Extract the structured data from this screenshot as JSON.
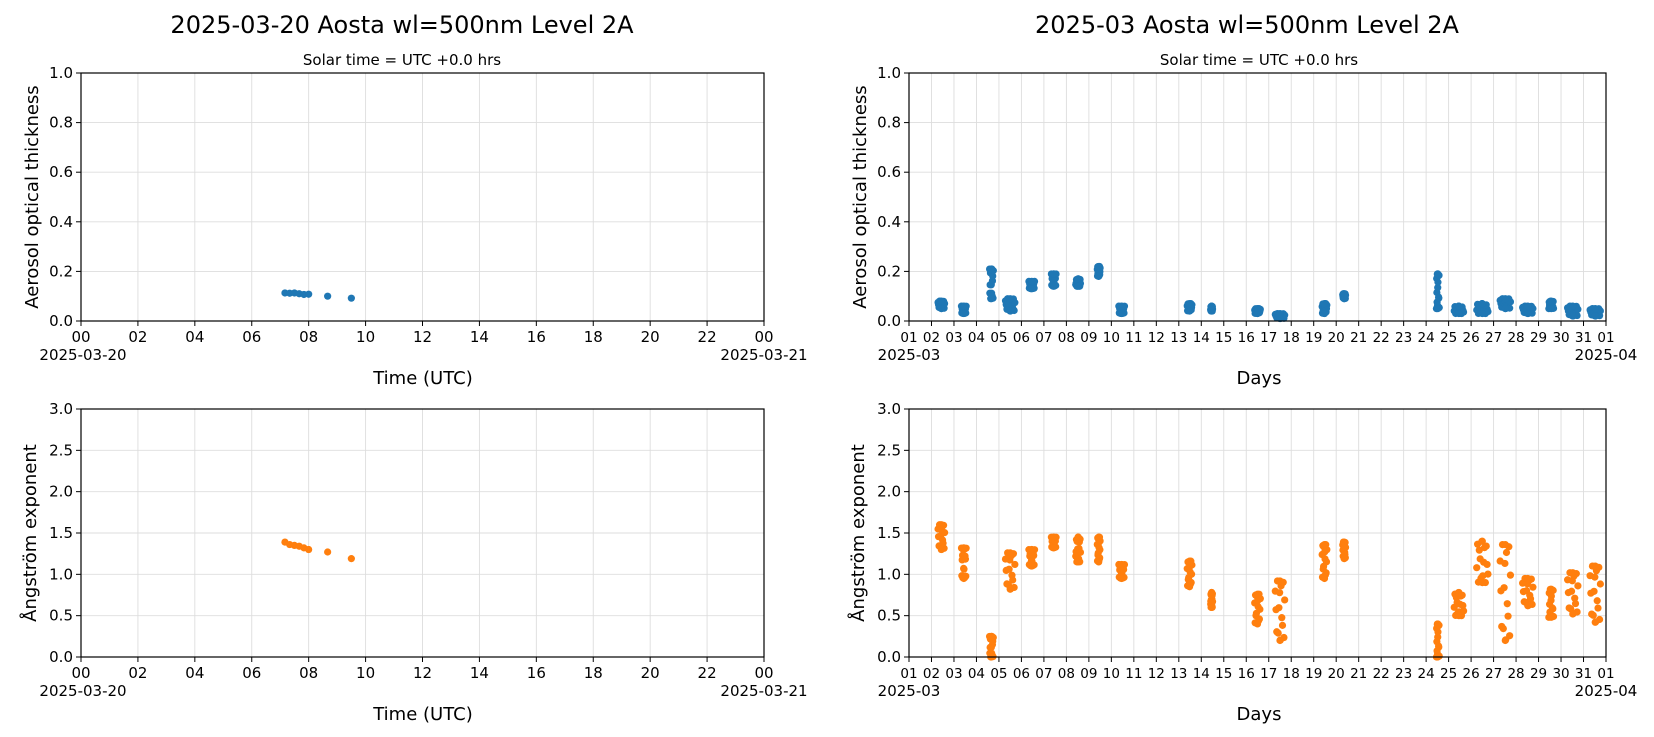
{
  "colors": {
    "aod": "#1f77b4",
    "angstrom": "#ff7f0e",
    "grid": "#dddddd"
  },
  "chart_data": [
    {
      "id": "daily-aod",
      "type": "scatter",
      "suptitle": "2025-03-20  Aosta  wl=500nm  Level 2A",
      "title": "Solar time = UTC +0.0 hrs",
      "xlabel": "Time (UTC)",
      "ylabel": "Aerosol optical thickness",
      "xlim": [
        "2025-03-20 00:00",
        "2025-03-21 00:00"
      ],
      "ylim": [
        0.0,
        1.0
      ],
      "xticks": [
        "00",
        "02",
        "04",
        "06",
        "08",
        "10",
        "12",
        "14",
        "16",
        "18",
        "20",
        "22",
        "00"
      ],
      "xtick_date_left": "2025-03-20",
      "xtick_date_right": "2025-03-21",
      "yticks": [
        "0.0",
        "0.2",
        "0.4",
        "0.6",
        "0.8",
        "1.0"
      ],
      "grid": true,
      "points": [
        {
          "x": "2025-03-20 07:10",
          "y": 0.113
        },
        {
          "x": "2025-03-20 07:20",
          "y": 0.112
        },
        {
          "x": "2025-03-20 07:30",
          "y": 0.113
        },
        {
          "x": "2025-03-20 07:40",
          "y": 0.11
        },
        {
          "x": "2025-03-20 07:50",
          "y": 0.107
        },
        {
          "x": "2025-03-20 08:00",
          "y": 0.108
        },
        {
          "x": "2025-03-20 08:40",
          "y": 0.1
        },
        {
          "x": "2025-03-20 09:30",
          "y": 0.092
        }
      ]
    },
    {
      "id": "monthly-aod",
      "type": "scatter",
      "suptitle": "2025-03  Aosta  wl=500nm  Level 2A",
      "title": "Solar time = UTC +0.0 hrs",
      "xlabel": "Days",
      "ylabel": "Aerosol optical thickness",
      "xlim": [
        "2025-03-01",
        "2025-04-01"
      ],
      "ylim": [
        0.0,
        1.0
      ],
      "xticks": [
        "01",
        "02",
        "03",
        "04",
        "05",
        "06",
        "07",
        "08",
        "09",
        "10",
        "11",
        "12",
        "13",
        "14",
        "15",
        "16",
        "17",
        "18",
        "19",
        "20",
        "21",
        "22",
        "23",
        "24",
        "25",
        "26",
        "27",
        "28",
        "29",
        "30",
        "31",
        "01"
      ],
      "xtick_date_left": "2025-03",
      "xtick_date_right": "2025-04",
      "yticks": [
        "0.0",
        "0.2",
        "0.4",
        "0.6",
        "0.8",
        "1.0"
      ],
      "grid": true,
      "clusters": [
        {
          "day": "2025-03-02",
          "start_h": 7,
          "end_h": 14,
          "y_min": 0.05,
          "y_max": 0.08
        },
        {
          "day": "2025-03-03",
          "start_h": 8,
          "end_h": 13,
          "y_min": 0.03,
          "y_max": 0.06
        },
        {
          "day": "2025-03-04",
          "start_h": 14,
          "end_h": 18,
          "y_min": 0.09,
          "y_max": 0.21
        },
        {
          "day": "2025-03-05",
          "start_h": 7,
          "end_h": 17,
          "y_min": 0.04,
          "y_max": 0.09
        },
        {
          "day": "2025-03-06",
          "start_h": 8,
          "end_h": 14,
          "y_min": 0.13,
          "y_max": 0.16
        },
        {
          "day": "2025-03-07",
          "start_h": 8,
          "end_h": 13,
          "y_min": 0.14,
          "y_max": 0.19
        },
        {
          "day": "2025-03-08",
          "start_h": 10,
          "end_h": 15,
          "y_min": 0.14,
          "y_max": 0.17
        },
        {
          "day": "2025-03-09",
          "start_h": 9,
          "end_h": 12,
          "y_min": 0.18,
          "y_max": 0.22
        },
        {
          "day": "2025-03-10",
          "start_h": 8,
          "end_h": 14,
          "y_min": 0.03,
          "y_max": 0.06
        },
        {
          "day": "2025-03-13",
          "start_h": 9,
          "end_h": 14,
          "y_min": 0.04,
          "y_max": 0.07
        },
        {
          "day": "2025-03-14",
          "start_h": 10,
          "end_h": 12,
          "y_min": 0.04,
          "y_max": 0.06
        },
        {
          "day": "2025-03-16",
          "start_h": 9,
          "end_h": 15,
          "y_min": 0.03,
          "y_max": 0.05
        },
        {
          "day": "2025-03-17",
          "start_h": 7,
          "end_h": 17,
          "y_min": 0.01,
          "y_max": 0.03
        },
        {
          "day": "2025-03-19",
          "start_h": 9,
          "end_h": 14,
          "y_min": 0.03,
          "y_max": 0.07
        },
        {
          "day": "2025-03-20",
          "start_h": 7,
          "end_h": 10,
          "y_min": 0.09,
          "y_max": 0.11
        },
        {
          "day": "2025-03-24",
          "start_h": 11,
          "end_h": 14,
          "y_min": 0.05,
          "y_max": 0.19
        },
        {
          "day": "2025-03-25",
          "start_h": 6,
          "end_h": 16,
          "y_min": 0.03,
          "y_max": 0.06
        },
        {
          "day": "2025-03-26",
          "start_h": 6,
          "end_h": 18,
          "y_min": 0.03,
          "y_max": 0.07
        },
        {
          "day": "2025-03-27",
          "start_h": 7,
          "end_h": 18,
          "y_min": 0.05,
          "y_max": 0.09
        },
        {
          "day": "2025-03-28",
          "start_h": 7,
          "end_h": 18,
          "y_min": 0.03,
          "y_max": 0.06
        },
        {
          "day": "2025-03-29",
          "start_h": 11,
          "end_h": 16,
          "y_min": 0.05,
          "y_max": 0.08
        },
        {
          "day": "2025-03-30",
          "start_h": 7,
          "end_h": 18,
          "y_min": 0.02,
          "y_max": 0.06
        },
        {
          "day": "2025-03-31",
          "start_h": 7,
          "end_h": 18,
          "y_min": 0.02,
          "y_max": 0.05
        }
      ]
    },
    {
      "id": "daily-angstrom",
      "type": "scatter",
      "xlabel": "Time (UTC)",
      "ylabel": "Ångström exponent",
      "xlim": [
        "2025-03-20 00:00",
        "2025-03-21 00:00"
      ],
      "ylim": [
        0.0,
        3.0
      ],
      "xticks": [
        "00",
        "02",
        "04",
        "06",
        "08",
        "10",
        "12",
        "14",
        "16",
        "18",
        "20",
        "22",
        "00"
      ],
      "xtick_date_left": "2025-03-20",
      "xtick_date_right": "2025-03-21",
      "yticks": [
        "0.0",
        "0.5",
        "1.0",
        "1.5",
        "2.0",
        "2.5",
        "3.0"
      ],
      "grid": true,
      "points": [
        {
          "x": "2025-03-20 07:10",
          "y": 1.39
        },
        {
          "x": "2025-03-20 07:20",
          "y": 1.36
        },
        {
          "x": "2025-03-20 07:30",
          "y": 1.35
        },
        {
          "x": "2025-03-20 07:40",
          "y": 1.34
        },
        {
          "x": "2025-03-20 07:50",
          "y": 1.32
        },
        {
          "x": "2025-03-20 08:00",
          "y": 1.3
        },
        {
          "x": "2025-03-20 08:40",
          "y": 1.27
        },
        {
          "x": "2025-03-20 09:30",
          "y": 1.19
        }
      ]
    },
    {
      "id": "monthly-angstrom",
      "type": "scatter",
      "xlabel": "Days",
      "ylabel": "Ångström exponent",
      "xlim": [
        "2025-03-01",
        "2025-04-01"
      ],
      "ylim": [
        0.0,
        3.0
      ],
      "xticks": [
        "01",
        "02",
        "03",
        "04",
        "05",
        "06",
        "07",
        "08",
        "09",
        "10",
        "11",
        "12",
        "13",
        "14",
        "15",
        "16",
        "17",
        "18",
        "19",
        "20",
        "21",
        "22",
        "23",
        "24",
        "25",
        "26",
        "27",
        "28",
        "29",
        "30",
        "31",
        "01"
      ],
      "xtick_date_left": "2025-03",
      "xtick_date_right": "2025-04",
      "yticks": [
        "0.0",
        "0.5",
        "1.0",
        "1.5",
        "2.0",
        "2.5",
        "3.0"
      ],
      "grid": true,
      "clusters": [
        {
          "day": "2025-03-02",
          "start_h": 7,
          "end_h": 14,
          "y_min": 1.3,
          "y_max": 1.6
        },
        {
          "day": "2025-03-03",
          "start_h": 8,
          "end_h": 13,
          "y_min": 0.95,
          "y_max": 1.32
        },
        {
          "day": "2025-03-04",
          "start_h": 14,
          "end_h": 18,
          "y_min": 0.0,
          "y_max": 0.25
        },
        {
          "day": "2025-03-05",
          "start_h": 7,
          "end_h": 17,
          "y_min": 0.82,
          "y_max": 1.26
        },
        {
          "day": "2025-03-06",
          "start_h": 8,
          "end_h": 14,
          "y_min": 1.1,
          "y_max": 1.3
        },
        {
          "day": "2025-03-07",
          "start_h": 8,
          "end_h": 13,
          "y_min": 1.32,
          "y_max": 1.45
        },
        {
          "day": "2025-03-08",
          "start_h": 10,
          "end_h": 15,
          "y_min": 1.15,
          "y_max": 1.45
        },
        {
          "day": "2025-03-09",
          "start_h": 9,
          "end_h": 12,
          "y_min": 1.15,
          "y_max": 1.45
        },
        {
          "day": "2025-03-10",
          "start_h": 8,
          "end_h": 14,
          "y_min": 0.95,
          "y_max": 1.12
        },
        {
          "day": "2025-03-13",
          "start_h": 9,
          "end_h": 14,
          "y_min": 0.85,
          "y_max": 1.16
        },
        {
          "day": "2025-03-14",
          "start_h": 10,
          "end_h": 12,
          "y_min": 0.6,
          "y_max": 0.78
        },
        {
          "day": "2025-03-16",
          "start_h": 9,
          "end_h": 15,
          "y_min": 0.4,
          "y_max": 0.76
        },
        {
          "day": "2025-03-17",
          "start_h": 7,
          "end_h": 17,
          "y_min": 0.2,
          "y_max": 0.92
        },
        {
          "day": "2025-03-19",
          "start_h": 9,
          "end_h": 14,
          "y_min": 0.95,
          "y_max": 1.36
        },
        {
          "day": "2025-03-20",
          "start_h": 7,
          "end_h": 10,
          "y_min": 1.19,
          "y_max": 1.39
        },
        {
          "day": "2025-03-24",
          "start_h": 11,
          "end_h": 14,
          "y_min": 0.0,
          "y_max": 0.4
        },
        {
          "day": "2025-03-25",
          "start_h": 6,
          "end_h": 16,
          "y_min": 0.5,
          "y_max": 0.78
        },
        {
          "day": "2025-03-26",
          "start_h": 6,
          "end_h": 18,
          "y_min": 0.9,
          "y_max": 1.4
        },
        {
          "day": "2025-03-27",
          "start_h": 7,
          "end_h": 18,
          "y_min": 0.2,
          "y_max": 1.36
        },
        {
          "day": "2025-03-28",
          "start_h": 7,
          "end_h": 18,
          "y_min": 0.62,
          "y_max": 0.95
        },
        {
          "day": "2025-03-29",
          "start_h": 11,
          "end_h": 16,
          "y_min": 0.48,
          "y_max": 0.82
        },
        {
          "day": "2025-03-30",
          "start_h": 7,
          "end_h": 18,
          "y_min": 0.52,
          "y_max": 1.02
        },
        {
          "day": "2025-03-31",
          "start_h": 7,
          "end_h": 18,
          "y_min": 0.42,
          "y_max": 1.1
        }
      ]
    }
  ]
}
